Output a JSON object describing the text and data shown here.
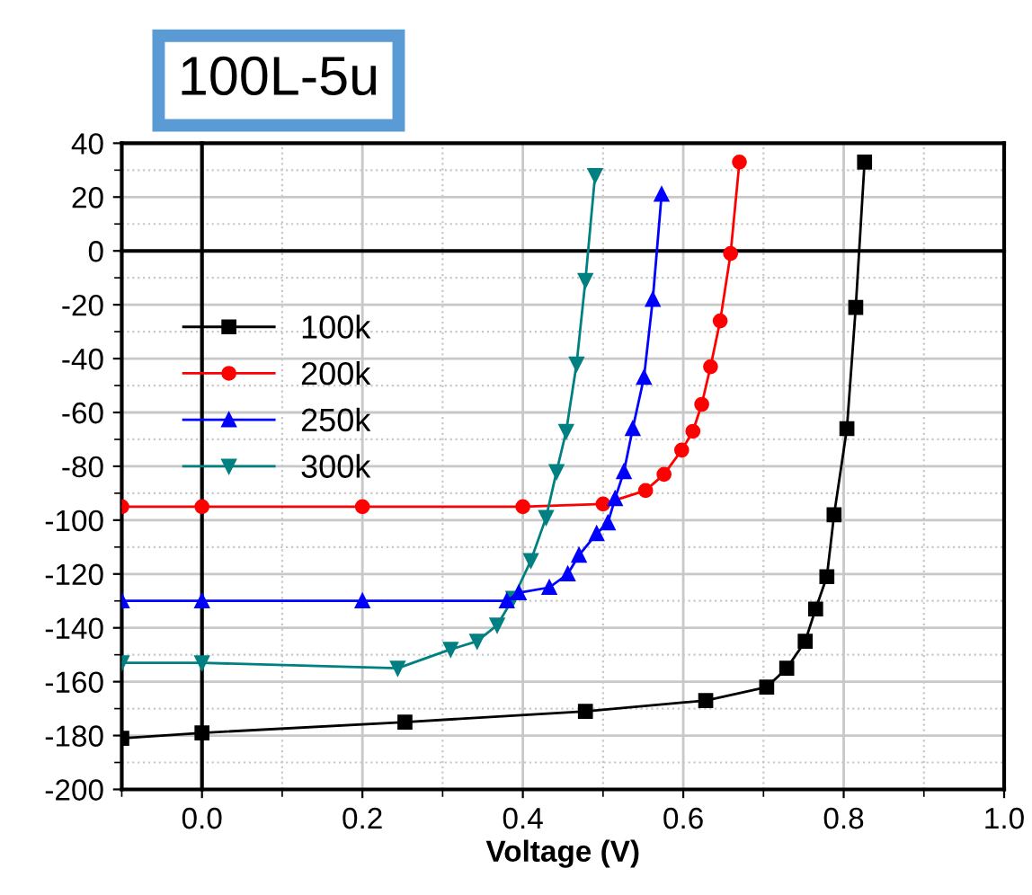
{
  "chart_data": {
    "type": "line",
    "title": "100L-5u",
    "xlabel": "Voltage (V)",
    "xlim": [
      -0.1,
      1.0
    ],
    "xticks": [
      {
        "value": 0,
        "label": "0.0"
      },
      0.2,
      0.4,
      0.6,
      0.8,
      {
        "value": 1,
        "label": "1.0"
      }
    ],
    "ylim": [
      -200,
      40
    ],
    "yticks": [
      -200,
      -180,
      -160,
      -140,
      -120,
      -100,
      -80,
      -60,
      -40,
      -20,
      0,
      20,
      40
    ],
    "grid": true,
    "legend": "top left",
    "line_style": "solid",
    "series": [
      {
        "name": "100k",
        "color": "#000000",
        "marker": "square",
        "x": [
          -0.1,
          0,
          0.253,
          0.478,
          0.628,
          0.704,
          0.729,
          0.752,
          0.765,
          0.779,
          0.788,
          0.804,
          0.815,
          0.826
        ],
        "values": [
          -181,
          -179,
          -175,
          -171,
          -167,
          -162,
          -155,
          -145,
          -133,
          -121,
          -98,
          -66,
          -21,
          33
        ]
      },
      {
        "name": "200k",
        "color": "#ff0000",
        "marker": "circle",
        "x": [
          -0.1,
          0,
          0.2,
          0.4,
          0.5,
          0.553,
          0.576,
          0.598,
          0.612,
          0.623,
          0.634,
          0.646,
          0.659,
          0.67
        ],
        "values": [
          -95,
          -95,
          -95,
          -95,
          -94,
          -89,
          -83,
          -74,
          -67,
          -57,
          -43,
          -26,
          -1,
          33
        ]
      },
      {
        "name": "250k",
        "color": "#0000ff",
        "marker": "triangle",
        "x": [
          -0.1,
          0,
          0.2,
          0.38,
          0.395,
          0.433,
          0.456,
          0.47,
          0.492,
          0.506,
          0.515,
          0.526,
          0.537,
          0.551,
          0.562,
          0.573
        ],
        "values": [
          -130,
          -130,
          -130,
          -130,
          -127,
          -125,
          -120,
          -113,
          -105,
          -101,
          -92,
          -82,
          -66,
          -47,
          -18,
          21
        ]
      },
      {
        "name": "300k",
        "color": "#008080",
        "marker": "triangle_down",
        "x": [
          -0.1,
          0,
          0.244,
          0.31,
          0.343,
          0.368,
          0.388,
          0.41,
          0.429,
          0.442,
          0.454,
          0.467,
          0.478,
          0.49
        ],
        "values": [
          -153,
          -153,
          -155,
          -148,
          -145,
          -139,
          -129,
          -115,
          -99,
          -82,
          -67,
          -42,
          -11,
          28
        ]
      }
    ]
  }
}
